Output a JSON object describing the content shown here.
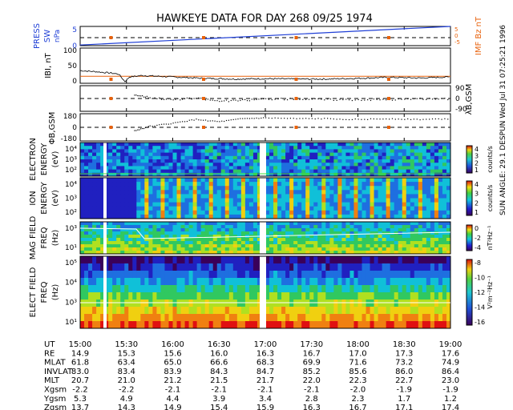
{
  "title": "HAWKEYE DATA FOR DAY 268 09/25 1974",
  "side_note": "SUN ANGLE: 29.1 DESPUN Wed Jul 31 07:25:21 1996",
  "colors": {
    "blue": "#1f3fd6",
    "orange": "#e8620c",
    "black": "#000000"
  },
  "chart_data": [
    {
      "type": "line",
      "panel": "solar wind pressure / IMF Bz",
      "ylabel_left_1": "PRESS",
      "ylabel_left_2": "SW",
      "ylabel_left_unit": "nPa",
      "yticks_left": [
        "5",
        "0"
      ],
      "ylabel_right": "IMF Bz nT",
      "yticks_right": [
        "5",
        "0",
        "-5"
      ],
      "ylim": [
        0,
        6
      ],
      "series": [
        {
          "name": "PRESS SW",
          "x": [
            "15:00",
            "19:00"
          ],
          "values": [
            0.2,
            6.0
          ],
          "color": "#1f3fd6"
        },
        {
          "name": "IMF Bz",
          "x": [
            "15:00",
            "19:00"
          ],
          "values": [
            2.5,
            2.5
          ],
          "color": "#000000"
        }
      ],
      "markers_x": [
        "15:20",
        "16:20",
        "17:20",
        "18:20"
      ]
    },
    {
      "type": "line",
      "panel": "|B|",
      "ylabel": "IBI, nT",
      "yticks": [
        "100",
        "50",
        "0"
      ],
      "ylim": [
        0,
        100
      ],
      "reference_level": 20,
      "x": [
        "15:00",
        "15:10",
        "15:20",
        "15:25",
        "15:29",
        "15:32",
        "15:40",
        "16:00",
        "16:20",
        "16:40",
        "17:00",
        "17:20",
        "17:40",
        "18:00",
        "18:20",
        "18:40",
        "19:00"
      ],
      "values": [
        36,
        33,
        29,
        26,
        5,
        18,
        22,
        18,
        14,
        12,
        13,
        12,
        12,
        14,
        17,
        15,
        18
      ],
      "markers_x": [
        "15:20",
        "16:20",
        "17:20",
        "18:20"
      ]
    },
    {
      "type": "scatter",
      "panel": "lambda",
      "ylabel": "λB,GSM",
      "yticks": [
        "90",
        "0",
        "-90"
      ],
      "ylim": [
        -90,
        90
      ],
      "x": [
        "15:35",
        "15:45",
        "16:00",
        "16:15",
        "16:30",
        "16:45",
        "17:00",
        "17:20",
        "17:40",
        "18:00",
        "18:20",
        "18:40",
        "19:00"
      ],
      "values": [
        30,
        10,
        -5,
        5,
        -15,
        -10,
        0,
        0,
        -5,
        -5,
        -5,
        0,
        0
      ],
      "markers_x": [
        "15:20",
        "16:20",
        "17:20",
        "18:20"
      ]
    },
    {
      "type": "scatter",
      "panel": "phi",
      "ylabel": "ΦB,GSM",
      "yticks": [
        "180",
        "0",
        "-180"
      ],
      "ylim": [
        -180,
        180
      ],
      "x": [
        "15:35",
        "15:45",
        "16:00",
        "16:15",
        "16:30",
        "16:45",
        "17:00",
        "17:20",
        "17:40",
        "18:00",
        "18:20",
        "18:40",
        "19:00"
      ],
      "values": [
        -40,
        20,
        60,
        110,
        80,
        120,
        130,
        120,
        120,
        110,
        120,
        110,
        120
      ],
      "markers_x": [
        "15:20",
        "16:20",
        "17:20",
        "18:20"
      ]
    },
    {
      "type": "heatmap",
      "panel": "electron",
      "ylabel_1": "ELECTRON",
      "ylabel_2": "ENERGY",
      "ylabel_3": "(eV)",
      "yticks": [
        "10⁴",
        "10³",
        "10²"
      ],
      "cbar_ticks": [
        "4",
        "3",
        "2",
        "1"
      ],
      "cbar_label": "counts/s"
    },
    {
      "type": "heatmap",
      "panel": "ion",
      "ylabel_1": "ION",
      "ylabel_2": "ENERGY",
      "ylabel_3": "(eV)",
      "yticks": [
        "10⁴",
        "10³",
        "10²"
      ],
      "cbar_ticks": [
        "4",
        "3",
        "2",
        "1"
      ],
      "cbar_label": "counts/s"
    },
    {
      "type": "heatmap",
      "panel": "magnetic",
      "ylabel_1": "MAG FIELD",
      "ylabel_2": "FREQ",
      "ylabel_3": "(Hz)",
      "yticks": [
        "10³",
        "10¹"
      ],
      "cbar_ticks": [
        "0",
        "-2",
        "-4"
      ],
      "cbar_label": "nT²Hz⁻¹"
    },
    {
      "type": "heatmap",
      "panel": "electric",
      "ylabel_1": "ELECT FIELD",
      "ylabel_2": "FREQ",
      "ylabel_3": "(Hz)",
      "yticks": [
        "10⁵",
        "10⁴",
        "10³",
        "10¹"
      ],
      "cbar_ticks": [
        "-8",
        "-10",
        "-12",
        "-14",
        "-16"
      ],
      "cbar_label": "V²m⁻²Hz⁻¹"
    }
  ],
  "orbit_table": {
    "rows": [
      {
        "label": "UT",
        "values": [
          "15:00",
          "15:30",
          "16:00",
          "16:30",
          "17:00",
          "17:30",
          "18:00",
          "18:30",
          "19:00"
        ]
      },
      {
        "label": "RE",
        "values": [
          "14.9",
          "15.3",
          "15.6",
          "16.0",
          "16.3",
          "16.7",
          "17.0",
          "17.3",
          "17.6"
        ]
      },
      {
        "label": "MLAT",
        "values": [
          "61.8",
          "63.4",
          "65.0",
          "66.6",
          "68.3",
          "69.9",
          "71.6",
          "73.2",
          "74.9"
        ]
      },
      {
        "label": "INVLAT",
        "values": [
          "83.0",
          "83.4",
          "83.9",
          "84.3",
          "84.7",
          "85.2",
          "85.6",
          "86.0",
          "86.4"
        ]
      },
      {
        "label": "MLT",
        "values": [
          "20.7",
          "21.0",
          "21.2",
          "21.5",
          "21.7",
          "22.0",
          "22.3",
          "22.7",
          "23.0"
        ]
      },
      {
        "label": "Xgsm",
        "values": [
          "-2.2",
          "-2.2",
          "-2.1",
          "-2.1",
          "-2.1",
          "-2.1",
          "-2.0",
          "-1.9",
          "-1.9"
        ]
      },
      {
        "label": "Ygsm",
        "values": [
          "5.3",
          "4.9",
          "4.4",
          "3.9",
          "3.4",
          "2.8",
          "2.3",
          "1.7",
          "1.2"
        ]
      },
      {
        "label": "Zgsm",
        "values": [
          "13.7",
          "14.3",
          "14.9",
          "15.4",
          "15.9",
          "16.3",
          "16.7",
          "17.1",
          "17.4"
        ]
      }
    ]
  }
}
